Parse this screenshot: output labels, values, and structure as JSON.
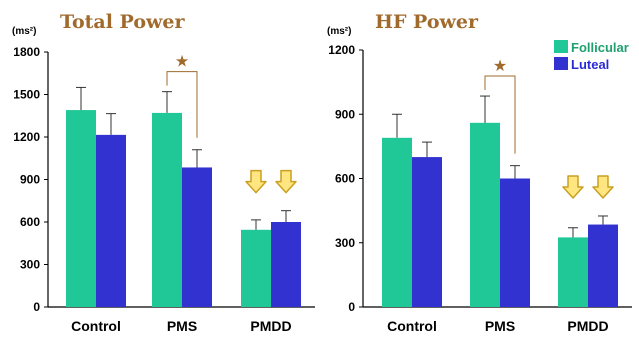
{
  "colors": {
    "follicular": "#1fc896",
    "luteal": "#3232d0",
    "title": "#a06a2c",
    "arrow_fill": "#ffe680",
    "arrow_stroke": "#c9a021",
    "bracket": "#a06a2c"
  },
  "legend": {
    "follicular_label": "Follicular",
    "luteal_label": "Luteal"
  },
  "chart_data": [
    {
      "type": "bar",
      "title": "Total Power",
      "unit": "(ms²)",
      "categories": [
        "Control",
        "PMS",
        "PMDD"
      ],
      "series": [
        {
          "name": "Follicular",
          "values": [
            1390,
            1370,
            545
          ],
          "errors": [
            160,
            150,
            70
          ]
        },
        {
          "name": "Luteal",
          "values": [
            1215,
            985,
            600
          ],
          "errors": [
            150,
            125,
            80
          ]
        }
      ],
      "ylim": [
        0,
        1800
      ],
      "yticks": [
        "0",
        "300",
        "600",
        "900",
        "1200",
        "1500",
        "1800"
      ],
      "significance": {
        "category": "PMS",
        "symbol": "★"
      },
      "arrows_category": "PMDD"
    },
    {
      "type": "bar",
      "title": "HF Power",
      "unit": "(ms²)",
      "categories": [
        "Control",
        "PMS",
        "PMDD"
      ],
      "series": [
        {
          "name": "Follicular",
          "values": [
            790,
            860,
            325
          ],
          "errors": [
            110,
            125,
            45
          ]
        },
        {
          "name": "Luteal",
          "values": [
            700,
            600,
            385
          ],
          "errors": [
            70,
            60,
            40
          ]
        }
      ],
      "ylim": [
        0,
        1200
      ],
      "yticks": [
        "0",
        "300",
        "600",
        "900",
        "1200"
      ],
      "significance": {
        "category": "PMS",
        "symbol": "★"
      },
      "arrows_category": "PMDD"
    }
  ]
}
